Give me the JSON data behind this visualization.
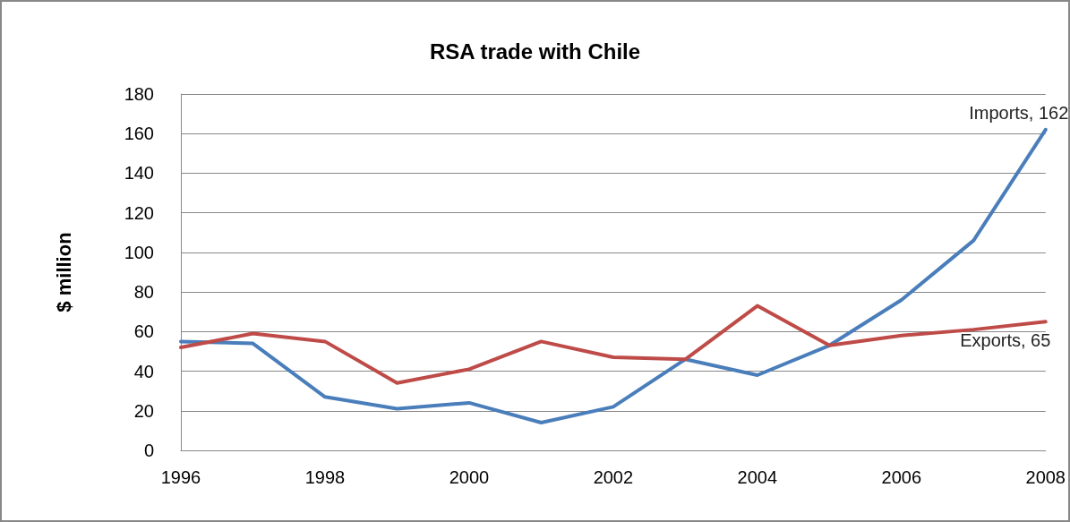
{
  "chart_data": {
    "type": "line",
    "title": "RSA trade with Chile",
    "ylabel": "$ million",
    "categories": [
      "1996",
      null,
      "1998",
      null,
      "2000",
      null,
      "2002",
      null,
      "2004",
      null,
      "2006",
      null,
      "2008"
    ],
    "series": [
      {
        "color": "#4a7ebb",
        "values": [
          55,
          54,
          27,
          21,
          24,
          14,
          22,
          46,
          38,
          53,
          76,
          106,
          162
        ],
        "value_labels": [
          null,
          null,
          null,
          null,
          null,
          null,
          null,
          null,
          null,
          null,
          null,
          null,
          "Imports, 162"
        ]
      },
      {
        "color": "#be4b48",
        "values": [
          52,
          59,
          55,
          34,
          41,
          55,
          47,
          46,
          73,
          53,
          58,
          61,
          65
        ],
        "value_labels": [
          null,
          null,
          null,
          null,
          null,
          null,
          null,
          null,
          null,
          null,
          null,
          null,
          "Exports, 65"
        ]
      }
    ],
    "ylim": [
      0,
      180
    ],
    "yticks": [
      0,
      20,
      40,
      60,
      80,
      100,
      120,
      140,
      160,
      180
    ],
    "grid": "y",
    "marker": "none",
    "line_style": "solid"
  }
}
